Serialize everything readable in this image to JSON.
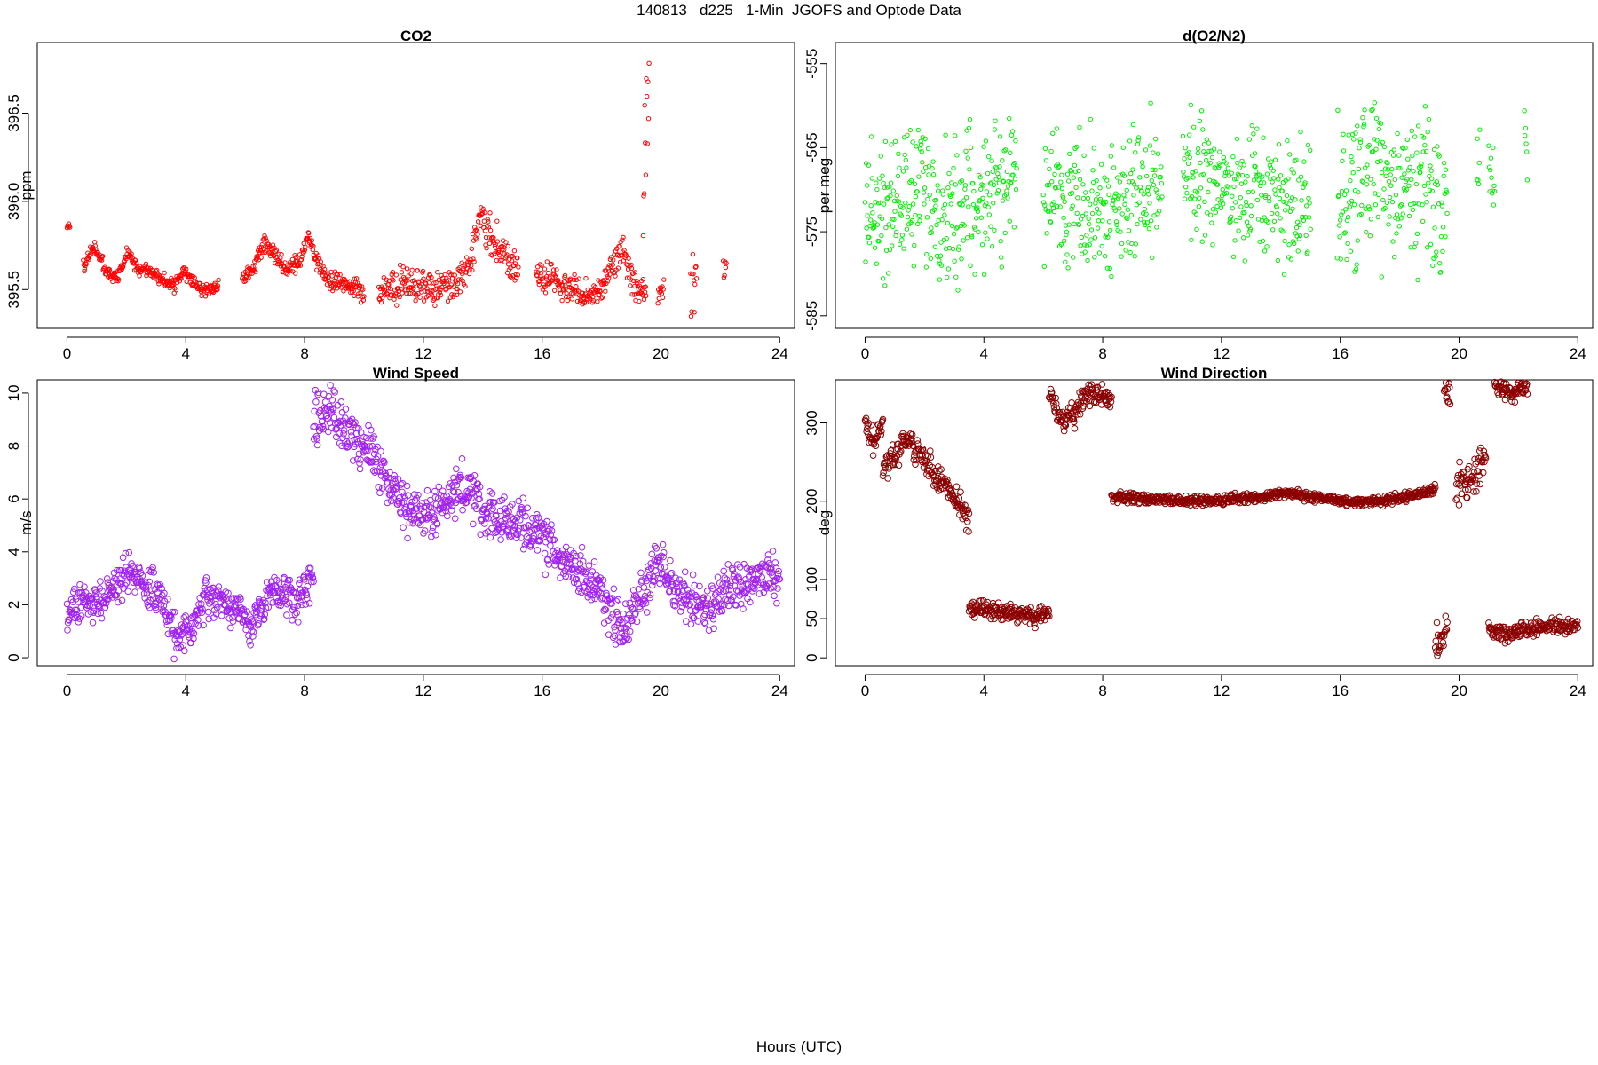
{
  "page": {
    "title": "140813   d225   1-Min  JGOFS and Optode Data",
    "x_label": "Hours (UTC)"
  },
  "chart_data": [
    {
      "type": "scatter",
      "title": "CO2",
      "xlabel": "",
      "ylabel": "ppm",
      "xlim": [
        -1,
        24.5
      ],
      "ylim": [
        395.28,
        396.9
      ],
      "xticks": [
        0,
        4,
        8,
        12,
        16,
        20,
        24
      ],
      "yticks": [
        395.5,
        396.0,
        396.5
      ],
      "ytick_labels": [
        "395.5",
        "396.0",
        "396.5"
      ],
      "color": "#ff0000",
      "marker_size": 2.2,
      "segments": [
        {
          "x0": 0.0,
          "x1": 0.1,
          "base": [
            395.86,
            395.86
          ],
          "noise": 0.01
        },
        {
          "x0": 0.55,
          "x1": 5.1,
          "base": [
            395.63,
            395.75,
            395.6,
            395.56,
            395.72,
            395.6,
            395.62,
            395.55,
            395.52,
            395.6,
            395.52,
            395.5,
            395.53
          ],
          "noise": 0.02
        },
        {
          "x0": 5.9,
          "x1": 10.0,
          "base": [
            395.56,
            395.62,
            395.76,
            395.7,
            395.6,
            395.64,
            395.8,
            395.62,
            395.55,
            395.54,
            395.52,
            395.48
          ],
          "noise": 0.025
        },
        {
          "x0": 10.5,
          "x1": 15.2,
          "base": [
            395.48,
            395.5,
            395.52,
            395.5,
            395.52,
            395.5,
            395.55,
            395.62,
            395.92,
            395.78,
            395.68,
            395.6
          ],
          "noise": 0.05
        },
        {
          "x0": 15.8,
          "x1": 19.5,
          "base": [
            395.56,
            395.58,
            395.52,
            395.5,
            395.46,
            395.48,
            395.6,
            395.75,
            395.52,
            395.5
          ],
          "noise": 0.04
        },
        {
          "x0": 19.4,
          "x1": 19.6,
          "base": [
            396.0,
            396.8
          ],
          "noise": 0.15
        },
        {
          "x0": 19.9,
          "x1": 20.1,
          "base": [
            395.5,
            395.5
          ],
          "noise": 0.03
        },
        {
          "x0": 21.0,
          "x1": 21.2,
          "base": [
            395.5,
            395.5
          ],
          "noise": 0.12
        },
        {
          "x0": 22.1,
          "x1": 22.2,
          "base": [
            395.6,
            395.6
          ],
          "noise": 0.03
        }
      ]
    },
    {
      "type": "scatter",
      "title": "d(O2/N2)",
      "xlabel": "",
      "ylabel": "per meg",
      "xlim": [
        -1,
        24.5
      ],
      "ylim": [
        -586.5,
        -552.5
      ],
      "xticks": [
        0,
        4,
        8,
        12,
        16,
        20,
        24
      ],
      "yticks": [
        -585,
        -575,
        -565,
        -555
      ],
      "ytick_labels": [
        "-585",
        "-575",
        "-565",
        "-555"
      ],
      "color": "#00ee00",
      "marker_size": 2.2,
      "segments": [
        {
          "x0": 0.0,
          "x1": 5.1,
          "base": [
            -572,
            -572,
            -570,
            -573,
            -572,
            -570,
            -569
          ],
          "noise": 4
        },
        {
          "x0": 6.0,
          "x1": 10.0,
          "base": [
            -570,
            -571,
            -572,
            -572,
            -571,
            -570
          ],
          "noise": 4
        },
        {
          "x0": 10.7,
          "x1": 15.0,
          "base": [
            -568,
            -569,
            -570,
            -571,
            -572,
            -573
          ],
          "noise": 3.5
        },
        {
          "x0": 15.9,
          "x1": 19.6,
          "base": [
            -571,
            -570,
            -569,
            -569,
            -570,
            -573
          ],
          "noise": 4.5
        },
        {
          "x0": 20.6,
          "x1": 20.7,
          "base": [
            -566,
            -566
          ],
          "noise": 3
        },
        {
          "x0": 21.0,
          "x1": 21.2,
          "base": [
            -571,
            -571
          ],
          "noise": 3
        },
        {
          "x0": 22.2,
          "x1": 22.3,
          "base": [
            -565,
            -565
          ],
          "noise": 2
        }
      ]
    },
    {
      "type": "scatter",
      "title": "Wind Speed",
      "xlabel": "",
      "ylabel": "m/s",
      "xlim": [
        -1,
        24.5
      ],
      "ylim": [
        -0.3,
        10.5
      ],
      "xticks": [
        0,
        4,
        8,
        12,
        16,
        20,
        24
      ],
      "yticks": [
        0,
        2,
        4,
        6,
        8,
        10
      ],
      "ytick_labels": [
        "0",
        "2",
        "4",
        "6",
        "8",
        "10"
      ],
      "color": "#a020f0",
      "marker_size": 3.3,
      "segments": [
        {
          "x0": 0.0,
          "x1": 8.3,
          "base": [
            1.6,
            2.1,
            2.0,
            2.7,
            3.2,
            2.8,
            2.4,
            0.8,
            1.0,
            2.2,
            2.1,
            1.8,
            1.2,
            2.4,
            2.5,
            2.2,
            3.2
          ],
          "noise": 0.35
        },
        {
          "x0": 8.3,
          "x1": 24.0,
          "base": [
            9.0,
            9.5,
            8.5,
            8.0,
            7.0,
            6.0,
            5.4,
            5.5,
            6.2,
            6.3,
            5.3,
            5.2,
            5.0,
            4.5,
            4.0,
            3.5,
            3.0,
            2.0,
            1.0,
            2.5,
            3.5,
            2.5,
            2.0,
            2.0,
            2.5,
            2.8,
            3.0,
            3.0
          ],
          "noise": 0.45
        }
      ]
    },
    {
      "type": "scatter",
      "title": "Wind Direction",
      "xlabel": "",
      "ylabel": "deg",
      "xlim": [
        -1,
        24.5
      ],
      "ylim": [
        -10,
        355
      ],
      "xticks": [
        0,
        4,
        8,
        12,
        16,
        20,
        24
      ],
      "yticks": [
        0,
        50,
        100,
        200,
        300
      ],
      "ytick_labels": [
        "0",
        "50",
        "100",
        "200",
        "300"
      ],
      "color": "#8b0000",
      "marker_size": 3.3,
      "segments": [
        {
          "x0": 0.0,
          "x1": 0.6,
          "base": [
            300,
            270,
            300
          ],
          "noise": 10
        },
        {
          "x0": 0.6,
          "x1": 3.5,
          "base": [
            245,
            260,
            280,
            260,
            240,
            220,
            200,
            170
          ],
          "noise": 8
        },
        {
          "x0": 3.5,
          "x1": 6.2,
          "base": [
            65,
            62,
            60,
            58,
            55,
            52,
            60
          ],
          "noise": 5
        },
        {
          "x0": 6.2,
          "x1": 8.3,
          "base": [
            340,
            300,
            310,
            335,
            340,
            330
          ],
          "noise": 7
        },
        {
          "x0": 8.3,
          "x1": 19.2,
          "base": [
            205,
            204,
            202,
            200,
            202,
            205,
            210,
            205,
            200,
            200,
            205,
            215
          ],
          "noise": 3
        },
        {
          "x0": 19.2,
          "x1": 19.6,
          "base": [
            10,
            40
          ],
          "noise": 12
        },
        {
          "x0": 19.5,
          "x1": 19.7,
          "base": [
            340,
            330
          ],
          "noise": 12
        },
        {
          "x0": 19.9,
          "x1": 20.9,
          "base": [
            220,
            225,
            235,
            260
          ],
          "noise": 12
        },
        {
          "x0": 21.0,
          "x1": 24.0,
          "base": [
            35,
            30,
            35,
            40,
            40,
            40
          ],
          "noise": 5
        },
        {
          "x0": 21.2,
          "x1": 22.3,
          "base": [
            345,
            340,
            348
          ],
          "noise": 6
        }
      ]
    }
  ]
}
